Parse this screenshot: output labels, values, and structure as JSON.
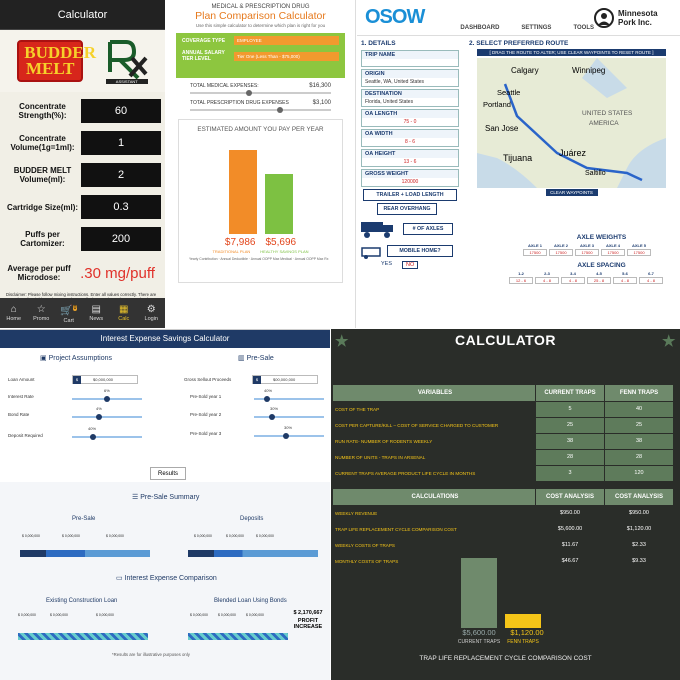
{
  "budder": {
    "title": "Calculator",
    "logo_text": "BUDDER MELT",
    "rx_sub": "ASSISTANT",
    "rows": [
      {
        "label": "Concentrate Strength(%):",
        "value": "60"
      },
      {
        "label": "Concentrate Volume(1g=1ml):",
        "value": "1"
      },
      {
        "label": "BUDDER MELT Volume(ml):",
        "value": "2"
      },
      {
        "label": "Cartridge Size(ml):",
        "value": "0.3"
      },
      {
        "label": "Puffs per Cartomizer:",
        "value": "200"
      }
    ],
    "microdose_label": "Average per puff Microdose:",
    "microdose_value": ".30 mg/puff",
    "disclaimer": "Disclaimer: Please follow mixing instructions. Enter all values correctly. There are a number of variables to be entered manually that are dependent on each other for accuracy of input. As a result, the BUDDER MELT - RX Assistant is currently provided for 'ENTERTAINMENT PURPOSES' ONLY!",
    "nav": [
      {
        "label": "Home",
        "icon": "home-icon"
      },
      {
        "label": "Promo",
        "icon": "star-icon"
      },
      {
        "label": "Cart",
        "icon": "cart-icon",
        "badge": "0"
      },
      {
        "label": "News",
        "icon": "news-icon"
      },
      {
        "label": "Calc",
        "icon": "calculator-icon"
      },
      {
        "label": "Login",
        "icon": "gear-icon"
      }
    ]
  },
  "plan": {
    "subtitle": "MEDICAL & PRESCRIPTION DRUG",
    "title": "Plan Comparison Calculator",
    "tagline": "Use this simple calculator to determine which plan is right for you",
    "coverage_label": "COVERAGE TYPE",
    "coverage_value": "EMPLOYEE",
    "salary_label": "ANNUAL SALARY TIER LEVEL",
    "salary_value": "Tier One (Less Than - $75,000)",
    "med_label": "TOTAL MEDICAL EXPENSES:",
    "med_value": "$16,300",
    "rx_label": "TOTAL PRESCRIPTION DRUG EXPENSES",
    "rx_value": "$3,100",
    "est_title": "ESTIMATED AMOUNT YOU PAY PER YEAR",
    "trad_amount": "$7,986",
    "hsp_amount": "$5,696",
    "trad_label": "TRADITIONAL PLAN",
    "hsp_label": "HEALTHY SAVINGS PLAN",
    "colors": {
      "trad": "#f28c28",
      "hsp": "#7dc142"
    },
    "values": [
      7986,
      5696
    ],
    "fine": "Yearly Contribution · Annual Deductible · Annual OOPP Max Medical · Annual OOPP Max Rx"
  },
  "osow": {
    "logo": "OSOW",
    "nav": [
      "DASHBOARD",
      "SETTINGS",
      "TOOLS"
    ],
    "company": "Minnesota Pork Inc.",
    "details_title": "1. DETAILS",
    "route_title": "2. SELECT PREFERRED ROUTE",
    "route_hint": "[ DRAG THE ROUTE TO ALTER; USE CLEAR WAYPOINTS TO RESET ROUTE ]",
    "fields": [
      {
        "label": "TRIP NAME",
        "value": ""
      },
      {
        "label": "ORIGIN",
        "value": "Seattle, WA, United States"
      },
      {
        "label": "DESTINATION",
        "value": "Florida, United States"
      },
      {
        "label": "OA LENGTH",
        "value": "75 - 0"
      },
      {
        "label": "OA WIDTH",
        "value": "8 - 6"
      },
      {
        "label": "OA HEIGHT",
        "value": "13 - 6"
      },
      {
        "label": "GROSS WEIGHT",
        "value": "120000"
      }
    ],
    "btn_trailer": "TRAILER + LOAD LENGTH",
    "btn_overhang": "REAR OVERHANG",
    "axles_label": "# OF AXLES",
    "mobile_label": "MOBILE HOME?",
    "yes": "YES",
    "no": "NO",
    "clear_btn": "CLEAR WAYPOINTS",
    "cities": [
      "Calgary",
      "Winnipeg",
      "Seattle",
      "Portland",
      "UNITED STATES",
      "San Jose",
      "AMERICA",
      "Tijuana",
      "Juárez",
      "Saltillo"
    ],
    "axle_weights_title": "AXLE WEIGHTS",
    "axle_weights": [
      {
        "label": "AXLE 1",
        "value": "17500"
      },
      {
        "label": "AXLE 2",
        "value": "17500"
      },
      {
        "label": "AXLE 3",
        "value": "17500"
      },
      {
        "label": "AXLE 4",
        "value": "17500"
      },
      {
        "label": "AXLE 5",
        "value": "17500"
      }
    ],
    "axle_spacing_title": "AXLE SPACING",
    "axle_spacing": [
      {
        "label": "1-2",
        "value": "12 - 6"
      },
      {
        "label": "2-3",
        "value": "4 - 8"
      },
      {
        "label": "3-4",
        "value": "4 - 8"
      },
      {
        "label": "4-5",
        "value": "25 - 8"
      },
      {
        "label": "5-6",
        "value": "4 - 8"
      },
      {
        "label": "6-7",
        "value": "4 - 8"
      }
    ]
  },
  "interest": {
    "title": "Interest Expense Savings Calculator",
    "project_title": "Project Assumptions",
    "presale_title": "Pre-Sale",
    "left_fields": [
      {
        "label": "Loan Amount",
        "value": "$0,000,000"
      },
      {
        "label": "Interest Rate",
        "value": "6%"
      },
      {
        "label": "Bond Rate",
        "value": "4%"
      },
      {
        "label": "Deposit Required",
        "value": "40%"
      }
    ],
    "right_fields": [
      {
        "label": "Gross Sellout Proceeds",
        "value": "$00,000,000"
      },
      {
        "label": "Pre-Sold year 1",
        "value": "40%"
      },
      {
        "label": "Pre-Sold year 2",
        "value": "30%"
      },
      {
        "label": "Pre-Sold year 3",
        "value": "30%"
      }
    ],
    "results_btn": "Results",
    "summary_title": "Pre-Sale Summary",
    "presale_sub": "Pre-Sale",
    "deposits_sub": "Deposits",
    "comparison_title": "Interest Expense Comparison",
    "existing_label": "Existing Construction Loan",
    "blended_label": "Blended Loan Using Bonds",
    "profit_value": "$ 2,170,667",
    "profit_label": "PROFIT INCREASE",
    "footnote": "*Results are for illustrative purposes only",
    "tick": "$ 0,000,000"
  },
  "traps": {
    "title": "CALCULATOR",
    "headers": [
      "VARIABLES",
      "CURRENT TRAPS",
      "FENN TRAPS"
    ],
    "rows": [
      {
        "label": "COST OF THE TRAP",
        "a": "5",
        "b": "40"
      },
      {
        "label": "COST PER CAPTURE/KILL – COST OF SERVICE CHARGED TO CUSTOMER",
        "a": "25",
        "b": "25"
      },
      {
        "label": "RUN RATE- NUMBER OF RODENTS WEEKLY",
        "a": "38",
        "b": "38"
      },
      {
        "label": "NUMBER OF UNITS - TRAPS IN ARSENAL",
        "a": "28",
        "b": "28"
      },
      {
        "label": "CURRENT TRAPS AVERAGE PRODUCT LIFE CYCLE IN MONTHS",
        "a": "3",
        "b": "120"
      }
    ],
    "calc_headers": [
      "CALCULATIONS",
      "COST ANALYSIS",
      "COST ANALYSIS"
    ],
    "calc_rows": [
      {
        "label": "WEEKLY REVENUE",
        "a": "$950.00",
        "b": "$950.00"
      },
      {
        "label": "TRAP LIFE REPLACEMENT CYCLE COMPARISON COST",
        "a": "$5,600.00",
        "b": "$1,120.00"
      },
      {
        "label": "WEEKLY COSTS OF TRAPS",
        "a": "$11.67",
        "b": "$2.33"
      },
      {
        "label": "MONTHLY COSTS OF TRAPS",
        "a": "$46.67",
        "b": "$9.33"
      }
    ],
    "chart": {
      "bar_a_value": "$5,600.00",
      "bar_a_label": "CURRENT TRAPS",
      "bar_b_value": "$1,120.00",
      "bar_b_label": "FENN TRAPS",
      "caption": "TRAP LIFE REPLACEMENT CYCLE COMPARISON COST",
      "values": [
        5600,
        1120
      ],
      "colors": {
        "a": "#6f8a6c",
        "b": "#f5c518"
      }
    }
  }
}
